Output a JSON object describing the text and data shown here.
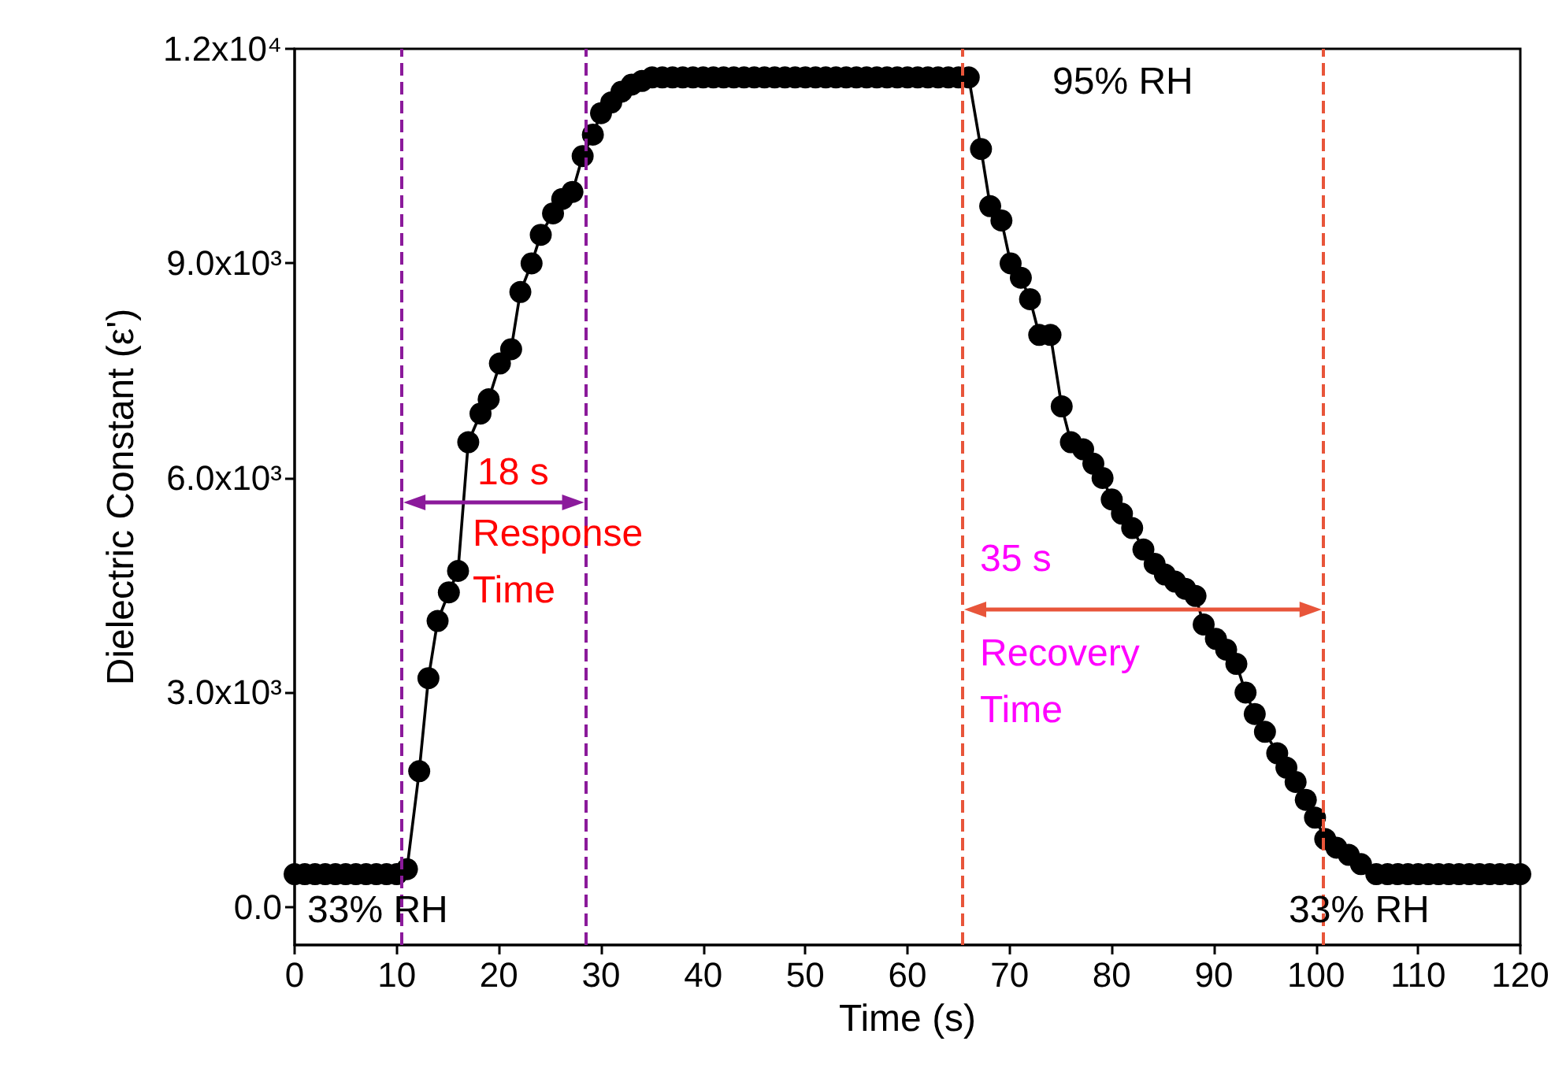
{
  "chart_data": {
    "type": "line",
    "xlabel": "Time (s)",
    "ylabel": "Dielectric Constant (ε')",
    "xlim": [
      0,
      120
    ],
    "xticks": [
      0,
      10,
      20,
      30,
      40,
      50,
      60,
      70,
      80,
      90,
      100,
      110,
      120
    ],
    "ylim": [
      -530,
      12000
    ],
    "yticks": [
      {
        "value": 0,
        "label": "0.0"
      },
      {
        "value": 3000,
        "label": "3.0x10³"
      },
      {
        "value": 6000,
        "label": "6.0x10³"
      },
      {
        "value": 9000,
        "label": "9.0x10³"
      },
      {
        "value": 12000,
        "label": "1.2x10⁴"
      }
    ],
    "grid": false,
    "marker": "circle",
    "line_style": "solid",
    "series": [
      {
        "color": "#000000",
        "x": [
          0,
          1,
          2,
          3,
          4,
          5,
          6,
          7,
          8,
          9,
          10,
          11,
          12.2,
          13.1,
          14,
          15.1,
          16,
          17,
          18.2,
          19,
          20.1,
          21.2,
          22.1,
          23.2,
          24.1,
          25.3,
          26.2,
          27.2,
          28.2,
          29.2,
          30,
          31,
          32,
          33,
          34,
          35,
          36,
          37,
          38,
          39,
          40,
          41,
          42,
          43,
          44,
          45,
          46,
          47,
          48,
          49,
          50,
          51,
          52,
          53,
          54,
          55,
          56,
          57,
          58,
          59,
          60,
          61,
          62,
          63,
          64,
          65,
          66,
          67.2,
          68.1,
          69.2,
          70.1,
          71.1,
          72,
          72.9,
          74,
          75.1,
          76,
          77.2,
          78.2,
          79.1,
          80,
          81,
          82,
          83.1,
          84.2,
          85.2,
          86.2,
          87.2,
          88.2,
          89,
          90.2,
          91.2,
          92.2,
          93.1,
          94,
          95,
          96.2,
          97.1,
          98,
          99,
          99.9,
          100.9,
          102,
          103.2,
          104.4,
          105.9,
          107,
          108,
          109,
          110,
          111,
          112,
          113,
          114,
          115,
          116,
          117,
          118,
          119,
          120
        ],
        "values": [
          460,
          460,
          460,
          460,
          460,
          460,
          460,
          460,
          460,
          460,
          460,
          530,
          1900,
          3200,
          4000,
          4400,
          4700,
          6500,
          6900,
          7100,
          7600,
          7800,
          8600,
          9000,
          9400,
          9700,
          9900,
          10000,
          10500,
          10800,
          11100,
          11250,
          11400,
          11500,
          11550,
          11600,
          11600,
          11600,
          11600,
          11600,
          11600,
          11600,
          11600,
          11600,
          11600,
          11600,
          11600,
          11600,
          11600,
          11600,
          11600,
          11600,
          11600,
          11600,
          11600,
          11600,
          11600,
          11600,
          11600,
          11600,
          11600,
          11600,
          11600,
          11600,
          11600,
          11600,
          11600,
          10600,
          9800,
          9600,
          9000,
          8800,
          8500,
          8000,
          8000,
          7000,
          6500,
          6400,
          6200,
          6000,
          5700,
          5500,
          5300,
          5000,
          4800,
          4650,
          4550,
          4450,
          4350,
          3950,
          3750,
          3600,
          3400,
          3000,
          2700,
          2450,
          2150,
          1950,
          1750,
          1500,
          1250,
          950,
          830,
          730,
          600,
          460,
          460,
          460,
          460,
          460,
          460,
          460,
          460,
          460,
          460,
          460,
          460,
          460,
          460,
          460
        ]
      }
    ],
    "ref_lines": [
      {
        "axis": "x",
        "value": 10.5,
        "color": "#8b1a9b",
        "line_style": "dashed"
      },
      {
        "axis": "x",
        "value": 28.5,
        "color": "#8b1a9b",
        "line_style": "dashed"
      },
      {
        "axis": "x",
        "value": 65.4,
        "color": "#e8553a",
        "line_style": "dashed"
      },
      {
        "axis": "x",
        "value": 100.7,
        "color": "#e8553a",
        "line_style": "dashed"
      }
    ],
    "annotations": [
      "18 s",
      "Response\nTime",
      "35 s",
      "Recovery\nTime",
      "95% RH",
      "33% RH",
      "33% RH"
    ]
  }
}
